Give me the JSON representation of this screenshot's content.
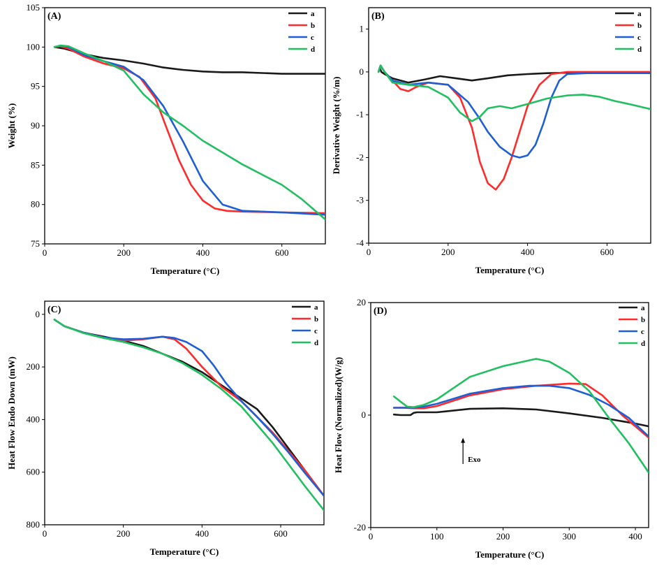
{
  "colors": {
    "a": "#1a1a1a",
    "b": "#ff2b2b",
    "c": "#1f5fd6",
    "d": "#20c060"
  },
  "chart_data": [
    {
      "id": "A",
      "type": "line",
      "panel_label": "(A)",
      "xlabel": "Temperature (°C)",
      "ylabel": "Weight   (%)",
      "xlim": [
        0,
        710
      ],
      "ylim": [
        75,
        105
      ],
      "xticks": [
        0,
        200,
        400,
        600
      ],
      "yticks": [
        75,
        80,
        85,
        90,
        95,
        100,
        105
      ],
      "legend": [
        "a",
        "b",
        "c",
        "d"
      ],
      "series": [
        {
          "name": "a",
          "x": [
            25,
            50,
            100,
            150,
            200,
            250,
            300,
            350,
            400,
            450,
            500,
            550,
            600,
            650,
            710
          ],
          "y": [
            100,
            99.8,
            99.1,
            98.6,
            98.3,
            97.9,
            97.4,
            97.1,
            96.9,
            96.8,
            96.8,
            96.7,
            96.6,
            96.6,
            96.6
          ]
        },
        {
          "name": "b",
          "x": [
            25,
            40,
            60,
            100,
            150,
            200,
            240,
            280,
            310,
            340,
            370,
            400,
            430,
            460,
            500,
            600,
            710
          ],
          "y": [
            100,
            100.1,
            99.8,
            98.8,
            97.9,
            97.3,
            96.2,
            93.5,
            89.5,
            85.6,
            82.5,
            80.5,
            79.5,
            79.2,
            79.1,
            79,
            78.9
          ]
        },
        {
          "name": "c",
          "x": [
            25,
            40,
            60,
            100,
            150,
            200,
            250,
            300,
            350,
            400,
            450,
            500,
            600,
            710
          ],
          "y": [
            100,
            100.2,
            100,
            99,
            98.2,
            97.5,
            95.8,
            92.5,
            88,
            83,
            80,
            79.2,
            79,
            78.7
          ]
        },
        {
          "name": "d",
          "x": [
            25,
            40,
            60,
            100,
            150,
            200,
            250,
            300,
            350,
            400,
            450,
            500,
            550,
            600,
            650,
            710
          ],
          "y": [
            100,
            100.2,
            100.1,
            99.2,
            98.2,
            97,
            94,
            91.7,
            90,
            88.1,
            86.6,
            85.1,
            83.8,
            82.5,
            80.7,
            78.1
          ]
        }
      ]
    },
    {
      "id": "B",
      "type": "line",
      "panel_label": "(B)",
      "xlabel": "Temperature (°C)",
      "ylabel": "Derivative Weight  (%/m)",
      "xlim": [
        0,
        710
      ],
      "ylim": [
        -4,
        1.5
      ],
      "xticks": [
        0,
        200,
        400,
        600
      ],
      "yticks": [
        -4,
        -3,
        -2,
        -1,
        0,
        1
      ],
      "legend": [
        "a",
        "b",
        "c",
        "d"
      ],
      "series": [
        {
          "name": "a",
          "x": [
            25,
            28,
            32,
            40,
            60,
            100,
            140,
            180,
            220,
            260,
            300,
            350,
            400,
            450,
            500,
            600,
            710
          ],
          "y": [
            0,
            0.1,
            0,
            -0.05,
            -0.15,
            -0.25,
            -0.18,
            -0.1,
            -0.15,
            -0.2,
            -0.15,
            -0.08,
            -0.05,
            -0.03,
            -0.02,
            -0.01,
            -0.01
          ]
        },
        {
          "name": "b",
          "x": [
            25,
            30,
            40,
            60,
            80,
            100,
            120,
            150,
            200,
            230,
            260,
            280,
            300,
            320,
            340,
            360,
            380,
            400,
            430,
            460,
            500,
            600,
            710
          ],
          "y": [
            0,
            0.15,
            0,
            -0.2,
            -0.4,
            -0.45,
            -0.35,
            -0.25,
            -0.3,
            -0.6,
            -1.3,
            -2.1,
            -2.6,
            -2.75,
            -2.5,
            -2,
            -1.4,
            -0.8,
            -0.3,
            -0.05,
            0,
            0,
            0
          ]
        },
        {
          "name": "c",
          "x": [
            25,
            30,
            40,
            60,
            100,
            150,
            200,
            250,
            280,
            300,
            330,
            360,
            380,
            400,
            420,
            440,
            460,
            480,
            500,
            550,
            600,
            710
          ],
          "y": [
            0,
            0.15,
            0,
            -0.2,
            -0.3,
            -0.25,
            -0.3,
            -0.7,
            -1.1,
            -1.4,
            -1.75,
            -1.95,
            -2,
            -1.95,
            -1.7,
            -1.2,
            -0.6,
            -0.2,
            -0.05,
            -0.03,
            -0.03,
            -0.03
          ]
        },
        {
          "name": "d",
          "x": [
            25,
            30,
            40,
            60,
            100,
            150,
            200,
            230,
            260,
            280,
            300,
            330,
            360,
            400,
            450,
            500,
            540,
            580,
            620,
            660,
            710
          ],
          "y": [
            0,
            0.15,
            0,
            -0.25,
            -0.3,
            -0.35,
            -0.6,
            -0.95,
            -1.15,
            -1.05,
            -0.85,
            -0.8,
            -0.85,
            -0.75,
            -0.62,
            -0.55,
            -0.53,
            -0.58,
            -0.68,
            -0.76,
            -0.87
          ]
        }
      ]
    },
    {
      "id": "C",
      "type": "line",
      "panel_label": "(C)",
      "xlabel": "Temperature (°C)",
      "ylabel": "Heat Flow Endo Down (mW)",
      "xlim": [
        0,
        710
      ],
      "ylim": [
        800,
        -50
      ],
      "xticks": [
        0,
        200,
        400,
        600
      ],
      "yticks": [
        0,
        200,
        400,
        600,
        800
      ],
      "legend": [
        "a",
        "b",
        "c",
        "d"
      ],
      "series": [
        {
          "name": "a",
          "x": [
            25,
            50,
            100,
            150,
            200,
            250,
            300,
            350,
            400,
            450,
            500,
            540,
            580,
            620,
            660,
            710
          ],
          "y": [
            20,
            45,
            70,
            85,
            100,
            120,
            150,
            180,
            220,
            270,
            320,
            360,
            430,
            510,
            590,
            690
          ]
        },
        {
          "name": "b",
          "x": [
            25,
            50,
            100,
            150,
            200,
            250,
            300,
            330,
            360,
            400,
            450,
            500,
            540,
            580,
            620,
            660,
            710
          ],
          "y": [
            20,
            45,
            70,
            88,
            100,
            95,
            85,
            95,
            130,
            200,
            275,
            330,
            390,
            450,
            520,
            590,
            690
          ]
        },
        {
          "name": "c",
          "x": [
            25,
            50,
            100,
            150,
            200,
            250,
            300,
            330,
            360,
            400,
            430,
            460,
            500,
            540,
            580,
            620,
            660,
            710
          ],
          "y": [
            20,
            45,
            70,
            88,
            95,
            93,
            85,
            90,
            105,
            140,
            195,
            260,
            330,
            390,
            455,
            525,
            600,
            690
          ]
        },
        {
          "name": "d",
          "x": [
            25,
            50,
            100,
            150,
            200,
            250,
            300,
            350,
            400,
            450,
            500,
            540,
            580,
            620,
            660,
            710
          ],
          "y": [
            20,
            45,
            72,
            90,
            105,
            125,
            150,
            185,
            230,
            285,
            350,
            420,
            490,
            570,
            650,
            745
          ]
        }
      ]
    },
    {
      "id": "D",
      "type": "line",
      "panel_label": "(D)",
      "xlabel": "Temperature (°C)",
      "ylabel": "Heat Flow (Normalized)(W/g)",
      "xlim": [
        0,
        420
      ],
      "ylim": [
        -20,
        20
      ],
      "xticks": [
        0,
        100,
        200,
        300,
        400
      ],
      "yticks": [
        -20,
        0,
        20
      ],
      "legend": [
        "a",
        "b",
        "c",
        "d"
      ],
      "annotation": "Exo",
      "series": [
        {
          "name": "a",
          "x": [
            35,
            45,
            60,
            65,
            70,
            100,
            150,
            200,
            250,
            300,
            350,
            400,
            420
          ],
          "y": [
            0.1,
            0,
            0,
            0.4,
            0.5,
            0.5,
            1.1,
            1.2,
            1,
            0.3,
            -0.5,
            -1.5,
            -2
          ]
        },
        {
          "name": "b",
          "x": [
            35,
            50,
            65,
            80,
            100,
            150,
            200,
            250,
            300,
            325,
            350,
            380,
            400,
            420
          ],
          "y": [
            1.3,
            1.3,
            1.2,
            1.2,
            1.6,
            3.5,
            4.6,
            5.2,
            5.6,
            5.5,
            3.5,
            0,
            -2,
            -4
          ]
        },
        {
          "name": "c",
          "x": [
            35,
            50,
            65,
            80,
            100,
            150,
            200,
            240,
            270,
            300,
            330,
            360,
            390,
            420
          ],
          "y": [
            1.3,
            1.3,
            1.3,
            1.5,
            2,
            3.8,
            4.8,
            5.2,
            5.2,
            4.8,
            3.6,
            1.8,
            -0.5,
            -3.8
          ]
        },
        {
          "name": "d",
          "x": [
            35,
            45,
            55,
            65,
            80,
            100,
            150,
            200,
            250,
            270,
            300,
            330,
            360,
            390,
            420
          ],
          "y": [
            3.3,
            2.4,
            1.5,
            1.4,
            1.8,
            2.8,
            6.8,
            8.7,
            10,
            9.5,
            7.5,
            4.3,
            -0.5,
            -5,
            -10.2
          ]
        }
      ]
    }
  ]
}
